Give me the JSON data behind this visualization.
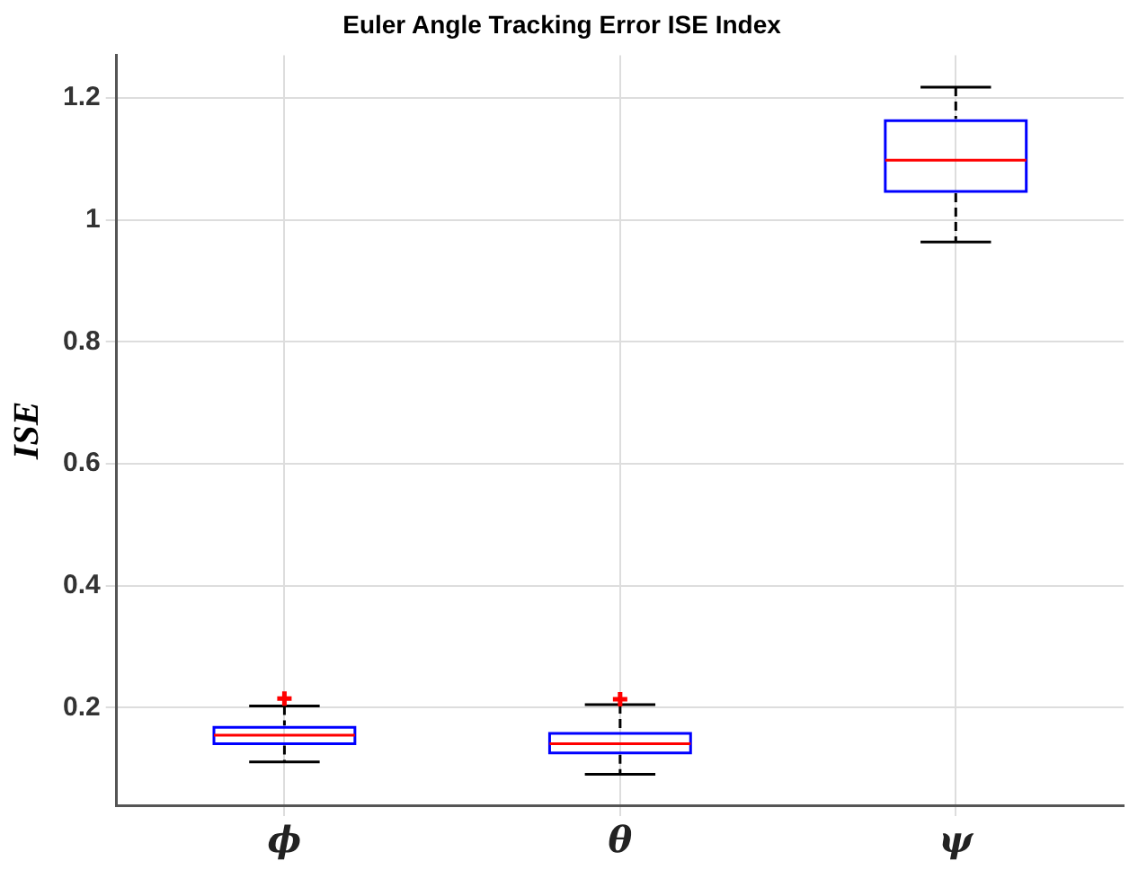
{
  "chart_data": {
    "type": "box",
    "title": "Euler Angle Tracking Error ISE Index",
    "ylabel": "ISE",
    "categories": [
      "ϕ",
      "θ",
      "ψ"
    ],
    "series": [
      {
        "color": "#0000ff",
        "boxes": [
          {
            "low": 0.111,
            "q1": 0.141,
            "median": 0.155,
            "q3": 0.168,
            "high": 0.203,
            "outliers": [
              0.215
            ]
          },
          {
            "low": 0.091,
            "q1": 0.126,
            "median": 0.141,
            "q3": 0.158,
            "high": 0.205,
            "outliers": [
              0.214
            ]
          },
          {
            "low": 0.964,
            "q1": 1.047,
            "median": 1.098,
            "q3": 1.163,
            "high": 1.218
          }
        ]
      }
    ],
    "ylim": [
      0.04,
      1.27
    ],
    "yticks": [
      0.2,
      0.4,
      0.6,
      0.8,
      1,
      1.2
    ],
    "grid": true,
    "legend": false,
    "marker": "cross"
  }
}
